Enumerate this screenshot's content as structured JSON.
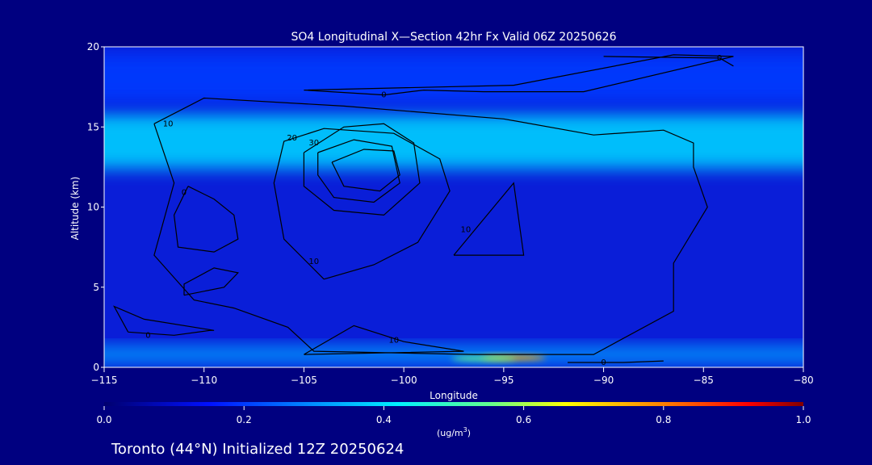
{
  "chart_data": {
    "type": "heatmap",
    "title": "SO4 Longitudinal X—Section 42hr  Fx Valid 06Z 20250626",
    "xlabel": "Longitude",
    "ylabel": "Altitude (km)",
    "xlim": [
      -115,
      -80
    ],
    "ylim": [
      0,
      20
    ],
    "xticks": [
      -115,
      -110,
      -105,
      -100,
      -95,
      -90,
      -85,
      -80
    ],
    "xtick_labels": [
      "−115",
      "−110",
      "−105",
      "−100",
      "−95",
      "−90",
      "−85",
      "−80"
    ],
    "yticks": [
      0,
      5,
      10,
      15,
      20
    ],
    "ytick_labels": [
      "0",
      "5",
      "10",
      "15",
      "20"
    ],
    "colorbar": {
      "ticks": [
        0.0,
        0.2,
        0.4,
        0.6,
        0.8,
        1.0
      ],
      "tick_labels": [
        "0.0",
        "0.2",
        "0.4",
        "0.6",
        "0.8",
        "1.0"
      ],
      "unit_prefix": "(ug/m",
      "unit_sup": "3",
      "unit_suffix": ")"
    },
    "bands": [
      {
        "alt_low": 12.4,
        "alt_high": 15.8,
        "value": 0.38
      },
      {
        "alt_low": 16.5,
        "alt_high": 19.6,
        "value": 0.2
      },
      {
        "alt_low": 0.3,
        "alt_high": 1.3,
        "value": 0.32
      }
    ],
    "hotspots": [
      {
        "lon": -94.5,
        "alt": 0.6,
        "value": 0.75
      },
      {
        "lon": -96.0,
        "alt": 0.55,
        "value": 0.55
      }
    ],
    "contours": [
      {
        "label": "0",
        "label_at": [
          -111,
          10.9
        ],
        "points": [
          [
            -110.8,
            11.3
          ],
          [
            -109.5,
            10.5
          ],
          [
            -108.5,
            9.5
          ],
          [
            -108.3,
            8.0
          ],
          [
            -109.5,
            7.2
          ],
          [
            -111.3,
            7.5
          ],
          [
            -111.5,
            9.5
          ],
          [
            -110.8,
            11.3
          ]
        ]
      },
      {
        "label": "",
        "label_at": null,
        "points": [
          [
            -111.0,
            4.5
          ],
          [
            -109.0,
            5.0
          ],
          [
            -108.3,
            5.9
          ],
          [
            -109.5,
            6.2
          ],
          [
            -111.0,
            5.2
          ],
          [
            -111.0,
            4.5
          ]
        ]
      },
      {
        "label": "10",
        "label_at": [
          -104.5,
          6.6
        ],
        "points": [
          [
            -104,
            5.5
          ],
          [
            -101.5,
            6.4
          ],
          [
            -99.3,
            7.8
          ],
          [
            -97.7,
            11
          ],
          [
            -98.2,
            13
          ],
          [
            -100.5,
            14.6
          ],
          [
            -104,
            14.9
          ],
          [
            -106,
            14.1
          ],
          [
            -106.5,
            11.5
          ],
          [
            -106,
            8
          ],
          [
            -104,
            5.5
          ]
        ]
      },
      {
        "label": "20",
        "label_at": [
          -105.6,
          14.3
        ],
        "points": [
          [
            -105,
            13.4
          ],
          [
            -103,
            15.0
          ],
          [
            -101,
            15.2
          ],
          [
            -99.5,
            14.0
          ],
          [
            -99.2,
            11.5
          ],
          [
            -101,
            9.5
          ],
          [
            -103.5,
            9.8
          ],
          [
            -105,
            11.3
          ],
          [
            -105,
            13.4
          ]
        ]
      },
      {
        "label": "30",
        "label_at": [
          -104.5,
          14.0
        ],
        "points": [
          [
            -104.3,
            13.4
          ],
          [
            -102.5,
            14.2
          ],
          [
            -100.6,
            13.8
          ],
          [
            -100.2,
            11.5
          ],
          [
            -101.5,
            10.3
          ],
          [
            -103.5,
            10.6
          ],
          [
            -104.3,
            12.0
          ],
          [
            -104.3,
            13.4
          ]
        ]
      },
      {
        "label": "",
        "label_at": null,
        "points": [
          [
            -103.6,
            12.8
          ],
          [
            -102.0,
            13.6
          ],
          [
            -100.5,
            13.5
          ],
          [
            -100.2,
            12.0
          ],
          [
            -101.2,
            11.0
          ],
          [
            -103.0,
            11.3
          ],
          [
            -103.6,
            12.8
          ]
        ]
      },
      {
        "label": "10",
        "label_at": [
          -111.8,
          15.2
        ],
        "points": [
          [
            -112.5,
            15.2
          ],
          [
            -110.0,
            16.8
          ],
          [
            -103.0,
            16.3
          ],
          [
            -95.0,
            15.5
          ],
          [
            -90.5,
            14.5
          ],
          [
            -87.0,
            14.8
          ],
          [
            -85.5,
            14.0
          ],
          [
            -85.5,
            12.5
          ],
          [
            -84.8,
            10.0
          ],
          [
            -86.5,
            6.5
          ],
          [
            -86.5,
            3.5
          ],
          [
            -90.5,
            0.8
          ],
          [
            -96.5,
            0.8
          ],
          [
            -104.5,
            1.0
          ],
          [
            -105.8,
            2.5
          ],
          [
            -108.5,
            3.7
          ],
          [
            -110.5,
            4.2
          ],
          [
            -112.5,
            7.0
          ],
          [
            -111.5,
            11.5
          ],
          [
            -112.5,
            15.2
          ]
        ]
      },
      {
        "label": "10",
        "label_at": [
          -100.5,
          1.7
        ],
        "points": [
          [
            -105,
            0.8
          ],
          [
            -102.5,
            2.6
          ],
          [
            -100.0,
            1.6
          ],
          [
            -97.0,
            1.0
          ],
          [
            -105,
            0.8
          ]
        ]
      },
      {
        "label": "10",
        "label_at": [
          -96.9,
          8.6
        ],
        "points": [
          [
            -97.5,
            7.0
          ],
          [
            -94.5,
            11.5
          ],
          [
            -94.0,
            7.0
          ],
          [
            -97.5,
            7.0
          ]
        ]
      },
      {
        "label": "0",
        "label_at": [
          -112.8,
          2.0
        ],
        "points": [
          [
            -113.8,
            2.2
          ],
          [
            -111.5,
            2.0
          ],
          [
            -109.7,
            2.3
          ],
          [
            -109.5,
            2.3
          ],
          [
            -113.0,
            3.0
          ],
          [
            -114.5,
            3.8
          ],
          [
            -113.8,
            2.2
          ]
        ]
      },
      {
        "label": "0",
        "label_at": [
          -101.0,
          17.0
        ],
        "points": [
          [
            -105.0,
            17.3
          ],
          [
            -101.0,
            17.0
          ],
          [
            -99.0,
            17.3
          ],
          [
            -96.0,
            17.2
          ],
          [
            -91.0,
            17.2
          ],
          [
            -83.5,
            19.4
          ],
          [
            -86.5,
            19.5
          ],
          [
            -94.5,
            17.6
          ],
          [
            -105.0,
            17.3
          ]
        ]
      },
      {
        "label": "0",
        "label_at": [
          -84.2,
          19.3
        ],
        "points": [
          [
            -90.0,
            19.4
          ],
          [
            -84.2,
            19.3
          ],
          [
            -83.5,
            18.8
          ]
        ]
      },
      {
        "label": "0",
        "label_at": [
          -90.0,
          0.3
        ],
        "points": [
          [
            -91.8,
            0.3
          ],
          [
            -89.0,
            0.3
          ],
          [
            -87.0,
            0.4
          ]
        ]
      }
    ]
  },
  "footer": {
    "caption": "Toronto (44°N) Initialized 12Z 20250624"
  }
}
